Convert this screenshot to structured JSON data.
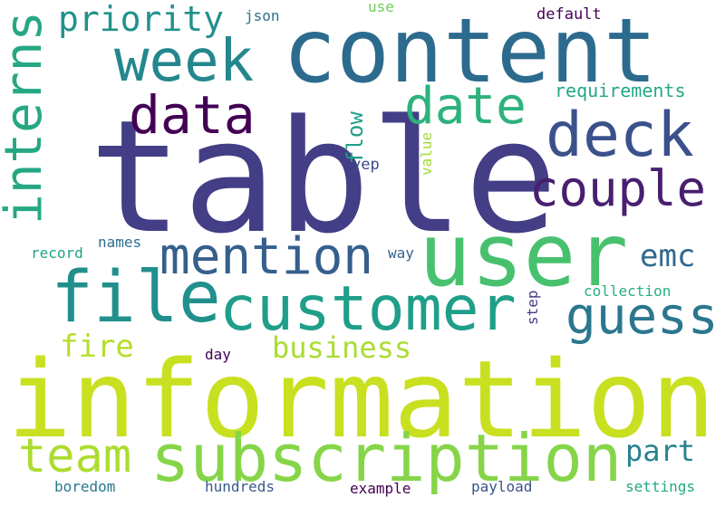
{
  "palette": {
    "dark_purple": "#440154",
    "indigo": "#472d7b",
    "slate_indigo": "#3b3f85",
    "steel_blue": "#33638d",
    "teal_blue": "#2a788e",
    "teal": "#21908d",
    "sea_green": "#22a884",
    "green": "#44bf70",
    "lime": "#7ad151",
    "yellow_green": "#bddf26",
    "yellow": "#c8e020",
    "background": "#ffffff"
  },
  "words": {
    "table": "table",
    "information": "information",
    "content": "content",
    "user": "user",
    "subscription": "subscription",
    "customer": "customer",
    "file": "file",
    "week": "week",
    "deck": "deck",
    "mention": "mention",
    "couple": "couple",
    "guess": "guess",
    "interns": "interns",
    "date": "date",
    "data": "data",
    "team": "team",
    "priority": "priority",
    "business": "business",
    "fire": "fire",
    "part": "part",
    "emc": "emc",
    "requirements": "requirements",
    "flow": "flow",
    "value": "value",
    "yep": "yep",
    "json": "json",
    "use": "use",
    "default": "default",
    "names": "names",
    "record": "record",
    "way": "way",
    "collection": "collection",
    "step": "step",
    "day": "day",
    "boredom": "boredom",
    "hundreds": "hundreds",
    "example": "example",
    "payload": "payload",
    "settings": "settings"
  }
}
